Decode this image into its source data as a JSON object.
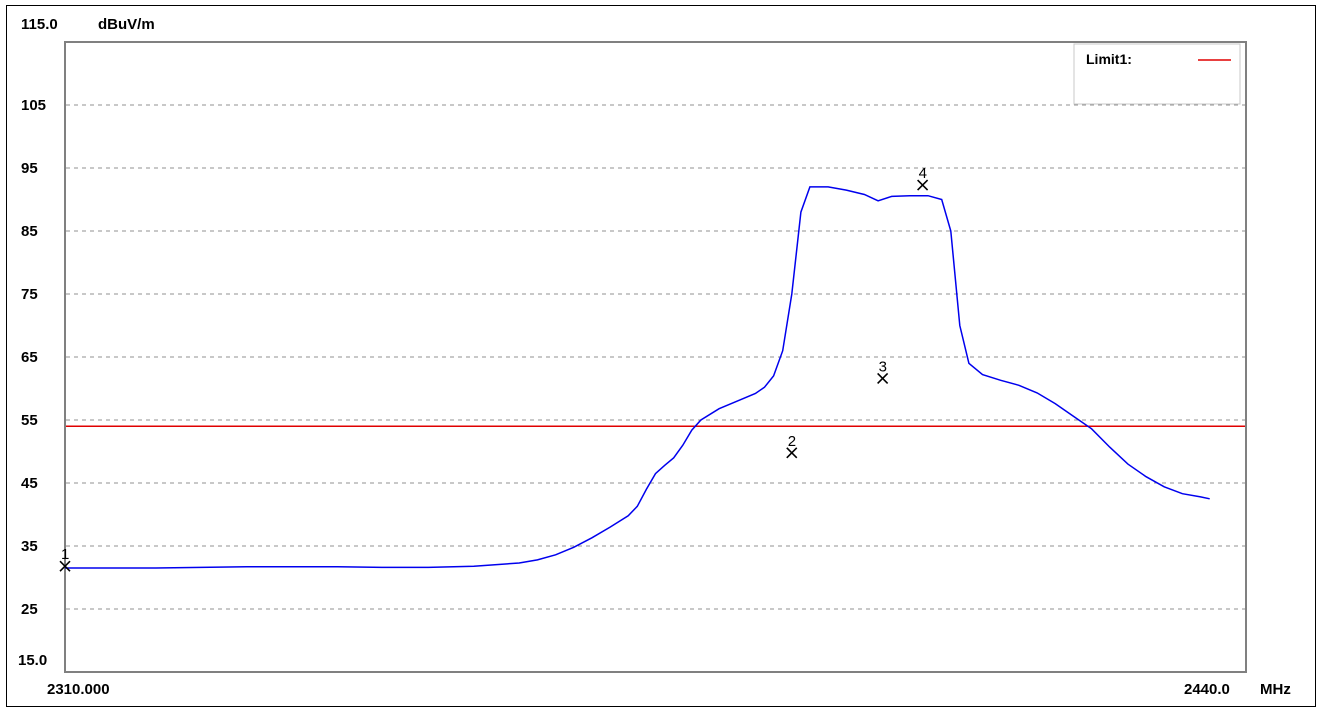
{
  "chart_data": {
    "type": "line",
    "y_unit": "dBuV/m",
    "x_unit": "MHz",
    "ylim": [
      15,
      115
    ],
    "xlim": [
      2310,
      2440
    ],
    "y_top_label": "115.0",
    "y_bottom_label": "15.0",
    "x_left_label": "2310.000",
    "x_right_label": "2440.0",
    "y_tick_labels": [
      "105",
      "95",
      "85",
      "75",
      "65",
      "55",
      "45",
      "35",
      "25"
    ],
    "y_tick_values": [
      105,
      95,
      85,
      75,
      65,
      55,
      45,
      35,
      25
    ],
    "grid": true,
    "legend_position": "top-right",
    "legend": {
      "label": "Limit1:",
      "color": "#e00000"
    },
    "limit_line": {
      "name": "Limit1",
      "value": 54.0,
      "color": "#e00000"
    },
    "series": [
      {
        "color": "#0000ee",
        "points": [
          [
            2310,
            31.5
          ],
          [
            2315,
            31.5
          ],
          [
            2320,
            31.5
          ],
          [
            2325,
            31.6
          ],
          [
            2330,
            31.7
          ],
          [
            2335,
            31.7
          ],
          [
            2340,
            31.7
          ],
          [
            2345,
            31.6
          ],
          [
            2350,
            31.6
          ],
          [
            2355,
            31.8
          ],
          [
            2360,
            32.3
          ],
          [
            2362,
            32.8
          ],
          [
            2364,
            33.6
          ],
          [
            2366,
            34.8
          ],
          [
            2368,
            36.3
          ],
          [
            2370,
            38.0
          ],
          [
            2372,
            39.8
          ],
          [
            2373,
            41.3
          ],
          [
            2374,
            44.0
          ],
          [
            2375,
            46.5
          ],
          [
            2376,
            47.8
          ],
          [
            2377,
            49.0
          ],
          [
            2378,
            51.0
          ],
          [
            2379,
            53.4
          ],
          [
            2380,
            55.0
          ],
          [
            2382,
            56.8
          ],
          [
            2384,
            58.0
          ],
          [
            2386,
            59.2
          ],
          [
            2387,
            60.2
          ],
          [
            2388,
            62.0
          ],
          [
            2389,
            66.0
          ],
          [
            2390,
            75.0
          ],
          [
            2391,
            88.0
          ],
          [
            2392,
            92.0
          ],
          [
            2394,
            92.0
          ],
          [
            2396,
            91.5
          ],
          [
            2398,
            90.8
          ],
          [
            2399.5,
            89.8
          ],
          [
            2401,
            90.5
          ],
          [
            2403,
            90.6
          ],
          [
            2405,
            90.6
          ],
          [
            2406.5,
            90.0
          ],
          [
            2407.5,
            85.0
          ],
          [
            2408.5,
            70.0
          ],
          [
            2409.5,
            64.0
          ],
          [
            2411,
            62.2
          ],
          [
            2413,
            61.3
          ],
          [
            2415,
            60.5
          ],
          [
            2417,
            59.3
          ],
          [
            2419,
            57.6
          ],
          [
            2421,
            55.6
          ],
          [
            2423,
            53.6
          ],
          [
            2425,
            50.7
          ],
          [
            2427,
            48.0
          ],
          [
            2429,
            46.0
          ],
          [
            2431,
            44.4
          ],
          [
            2433,
            43.3
          ],
          [
            2435,
            42.8
          ],
          [
            2436,
            42.5
          ]
        ]
      }
    ],
    "markers": [
      {
        "label": "1",
        "x": 2310.0,
        "y": 31.8
      },
      {
        "label": "2",
        "x": 2390.0,
        "y": 49.8
      },
      {
        "label": "3",
        "x": 2400.0,
        "y": 61.6
      },
      {
        "label": "4",
        "x": 2404.4,
        "y": 92.3
      }
    ]
  }
}
